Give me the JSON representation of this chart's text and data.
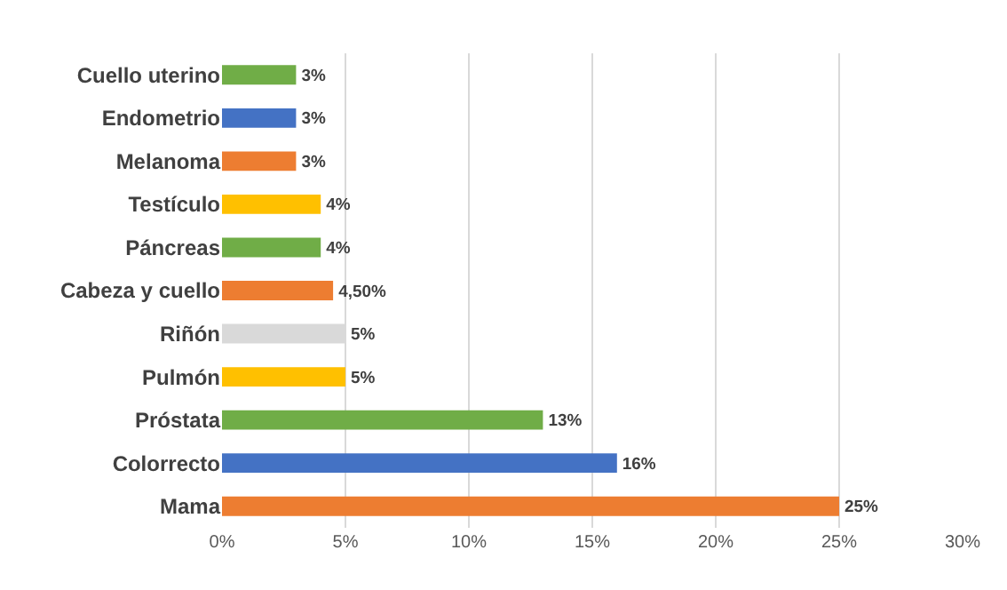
{
  "chart_data": {
    "type": "bar",
    "orientation": "horizontal",
    "categories": [
      "Cuello uterino",
      "Endometrio",
      "Melanoma",
      "Testículo",
      "Páncreas",
      "Cabeza y cuello",
      "Riñón",
      "Pulmón",
      "Próstata",
      "Colorrecto",
      "Mama"
    ],
    "values": [
      3,
      3,
      3,
      4,
      4,
      4.5,
      5,
      5,
      13,
      16,
      25
    ],
    "value_labels": [
      "3%",
      "3%",
      "3%",
      "4%",
      "4%",
      "4,50%",
      "5%",
      "5%",
      "13%",
      "16%",
      "25%"
    ],
    "colors": [
      "#70ad47",
      "#4472c4",
      "#ed7d31",
      "#ffc000",
      "#70ad47",
      "#ed7d31",
      "#d9d9d9",
      "#ffc000",
      "#70ad47",
      "#4472c4",
      "#ed7d31"
    ],
    "xlim": [
      0,
      30
    ],
    "xticks": [
      {
        "value": 0,
        "label": "0%"
      },
      {
        "value": 5,
        "label": "5%"
      },
      {
        "value": 10,
        "label": "10%"
      },
      {
        "value": 15,
        "label": "15%"
      },
      {
        "value": 20,
        "label": "20%"
      },
      {
        "value": 25,
        "label": "25%"
      },
      {
        "value": 30,
        "label": "30%"
      }
    ],
    "grid": "x"
  }
}
